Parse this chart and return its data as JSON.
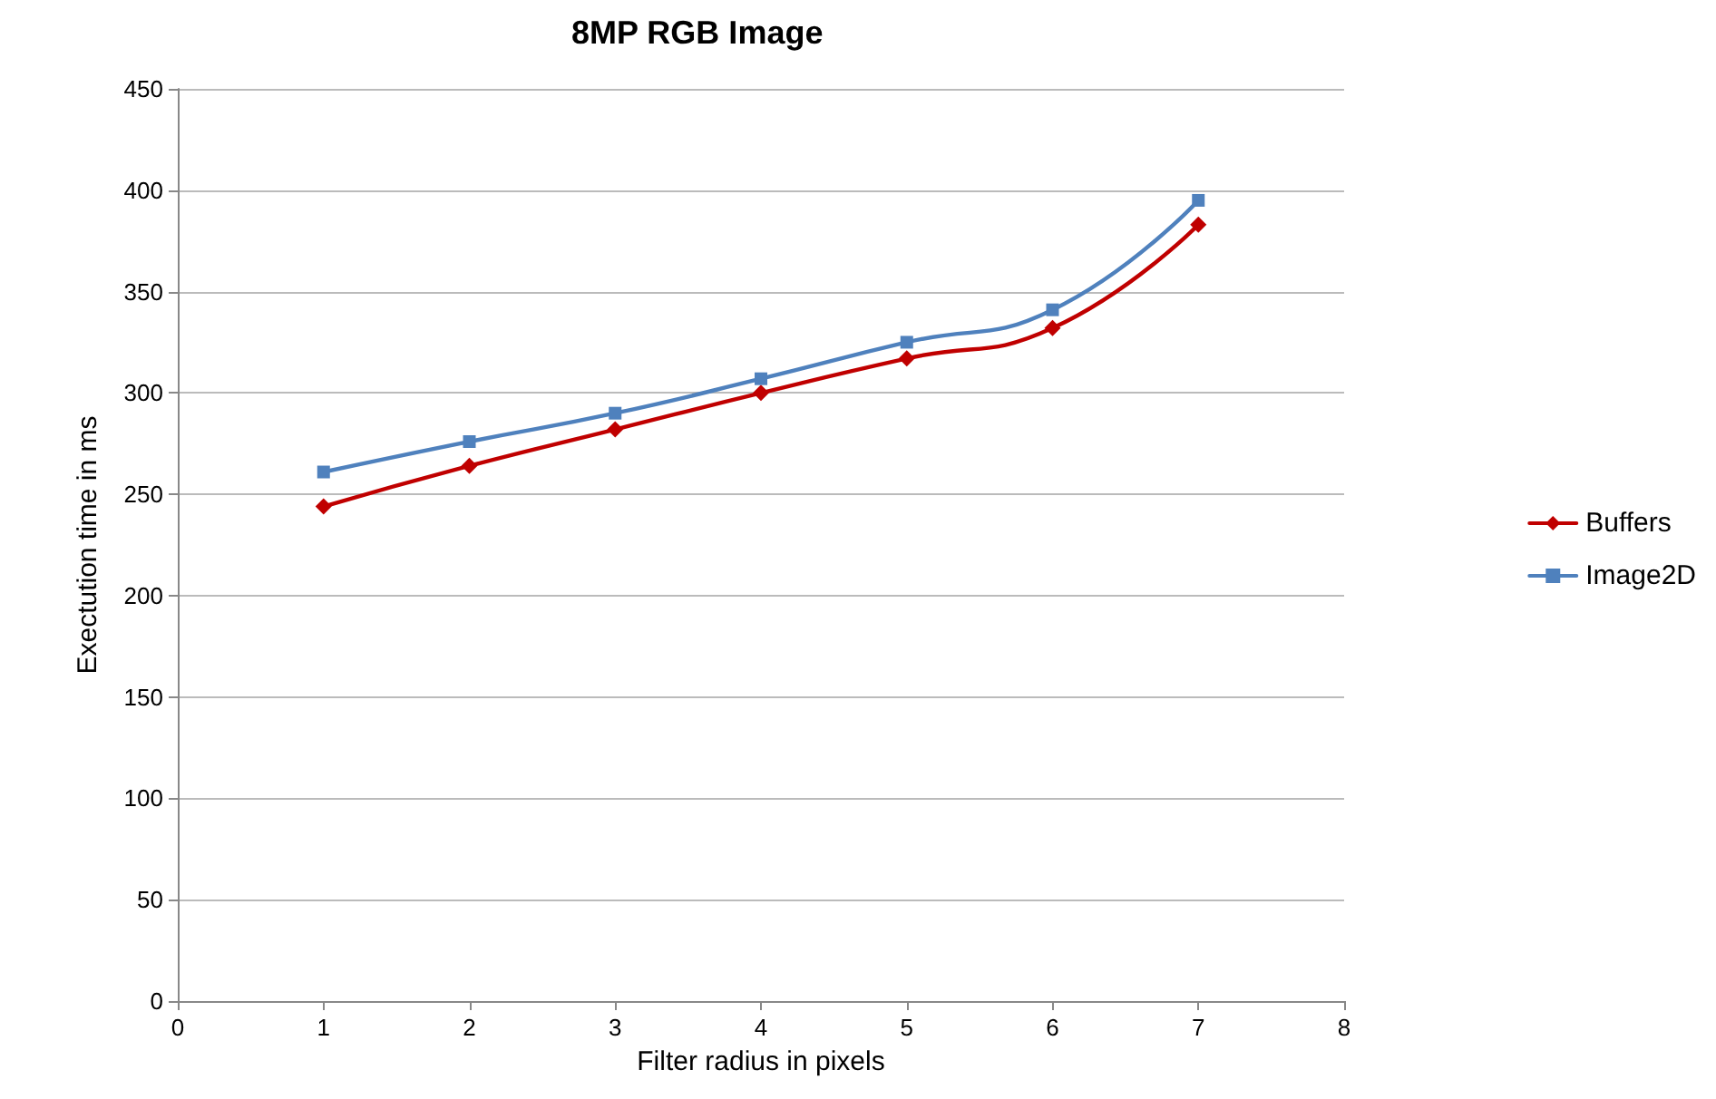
{
  "chart_data": {
    "type": "line",
    "title": "8MP RGB Image",
    "xlabel": "Filter radius in pixels",
    "ylabel": "Exectution time in ms",
    "x": [
      1,
      2,
      3,
      4,
      5,
      6,
      7
    ],
    "series": [
      {
        "name": "Buffers",
        "color": "#c00000",
        "marker": "diamond",
        "values": [
          244,
          264,
          282,
          300,
          317,
          332,
          383
        ]
      },
      {
        "name": "Image2D",
        "color": "#4f81bd",
        "marker": "square",
        "values": [
          261,
          276,
          290,
          307,
          325,
          341,
          395
        ]
      }
    ],
    "xlim": [
      0,
      8
    ],
    "xticks": [
      0,
      1,
      2,
      3,
      4,
      5,
      6,
      7,
      8
    ],
    "ylim": [
      0,
      450
    ],
    "yticks": [
      0,
      50,
      100,
      150,
      200,
      250,
      300,
      350,
      400,
      450
    ],
    "grid": "y",
    "legend": "right"
  }
}
